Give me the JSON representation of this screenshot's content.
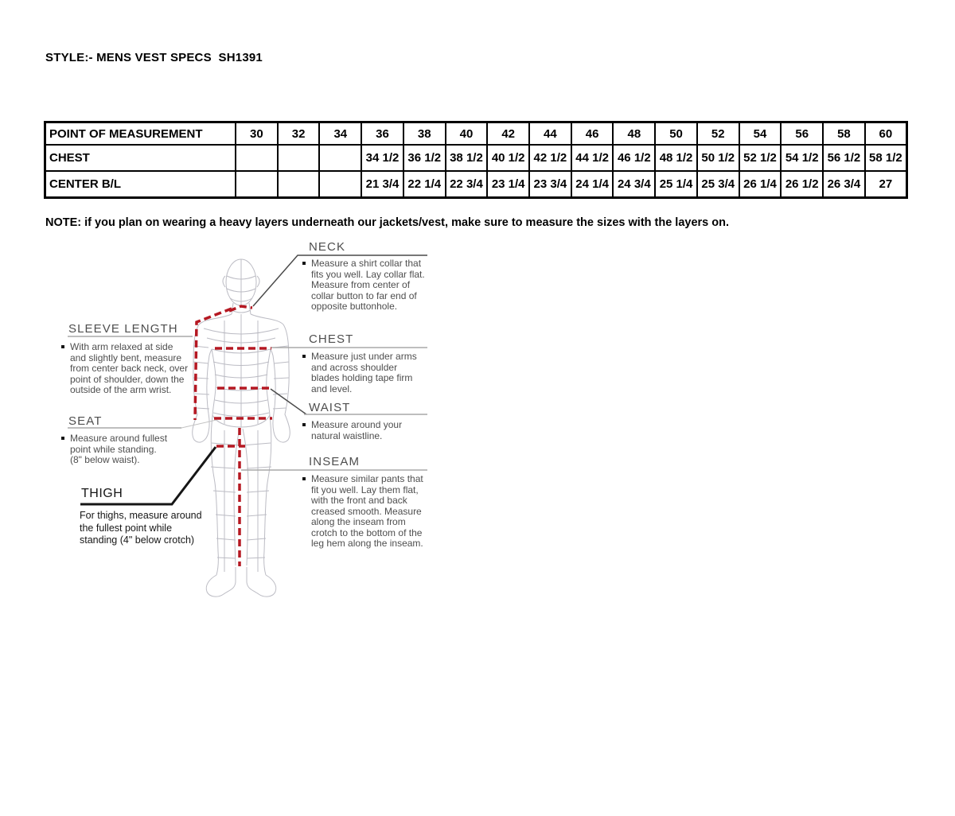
{
  "title": "STYLE:- MENS VEST SPECS  SH1391",
  "size_table": {
    "columns": [
      "POINT OF MEASUREMENT",
      "30",
      "32",
      "34",
      "36",
      "38",
      "40",
      "42",
      "44",
      "46",
      "48",
      "50",
      "52",
      "54",
      "56",
      "58",
      "60"
    ],
    "rows": [
      {
        "label": "CHEST",
        "values": [
          "",
          "",
          "",
          "34 1/2",
          "36 1/2",
          "38 1/2",
          "40 1/2",
          "42 1/2",
          "44 1/2",
          "46 1/2",
          "48 1/2",
          "50 1/2",
          "52 1/2",
          "54 1/2",
          "56 1/2",
          "58 1/2"
        ]
      },
      {
        "label": "CENTER B/L",
        "values": [
          "",
          "",
          "",
          "21 3/4",
          "22 1/4",
          "22 3/4",
          "23 1/4",
          "23 3/4",
          "24 1/4",
          "24 3/4",
          "25 1/4",
          "25 3/4",
          "26 1/4",
          "26 1/2",
          "26 3/4",
          "27"
        ]
      }
    ]
  },
  "note": "NOTE: if you plan on wearing a heavy layers underneath our jackets/vest, make sure to measure the sizes with the layers on.",
  "diagram": {
    "right_sections": [
      {
        "id": "neck",
        "heading": "NECK",
        "text": "Measure a shirt collar that fits you well. Lay collar flat. Measure from center of collar button to far end of opposite buttonhole."
      },
      {
        "id": "chest",
        "heading": "CHEST",
        "text": "Measure just under arms and across shoulder blades holding tape firm and level."
      },
      {
        "id": "waist",
        "heading": "WAIST",
        "text": "Measure around your natural waistline."
      },
      {
        "id": "inseam",
        "heading": "INSEAM",
        "text": "Measure similar pants that fit you well. Lay them flat, with the front and back creased smooth. Measure along the inseam from crotch to the bottom of the leg hem along the inseam."
      }
    ],
    "left_sections": [
      {
        "id": "sleeve-length",
        "heading": "SLEEVE LENGTH",
        "text": "With arm relaxed at side and slightly bent, measure from center back neck, over point of shoulder, down the outside of the arm wrist."
      },
      {
        "id": "seat",
        "heading": "SEAT",
        "text": "Measure around fullest point while standing. (8\" below waist)."
      },
      {
        "id": "thigh",
        "heading": "THIGH",
        "text": "For thighs, measure around the fullest point while standing (4\" below crotch)"
      }
    ]
  },
  "colors": {
    "measurement_line_red": "#b51822",
    "wireframe_gray": "#bcbcc4",
    "heading_gray": "#4e4e4e",
    "underline_gray": "#a9a9a9",
    "text_black": "#161616"
  }
}
